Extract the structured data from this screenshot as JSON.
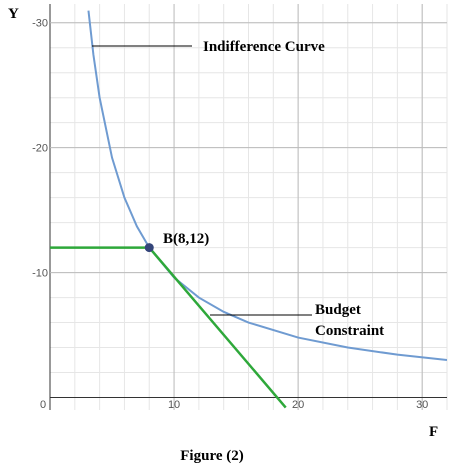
{
  "chart_data": {
    "type": "line",
    "title": "Figure (2)",
    "x_label": "F",
    "y_label": "Y",
    "xlim": [
      0,
      32
    ],
    "ylim": [
      -1,
      31.5
    ],
    "xticks": [
      0,
      10,
      20,
      30
    ],
    "yticks": [
      {
        "value": 10,
        "label": "-10"
      },
      {
        "value": 20,
        "label": "-20"
      },
      {
        "value": 30,
        "label": "-30"
      }
    ],
    "grid": true,
    "minor_grid_step": 2,
    "series": [
      {
        "name": "Indifference Curve",
        "color": "#6f9bd1",
        "x": [
          3.1,
          3.5,
          4,
          5,
          6,
          7,
          8,
          10,
          12,
          14,
          16,
          20,
          24,
          28,
          32
        ],
        "values": [
          30.97,
          27.43,
          24,
          19.2,
          16,
          13.71,
          12,
          9.6,
          8,
          6.86,
          6,
          4.8,
          4,
          3.43,
          3
        ]
      },
      {
        "name": "Budget Constraint",
        "color": "#2ea83a",
        "x": [
          8,
          19
        ],
        "values": [
          12,
          -0.8
        ]
      },
      {
        "color": "#2ea83a",
        "x": [
          0,
          8
        ],
        "values": [
          12,
          12
        ]
      }
    ],
    "point": {
      "label": "B(8,12)",
      "x": 8,
      "y": 12,
      "color": "#34457a"
    }
  }
}
